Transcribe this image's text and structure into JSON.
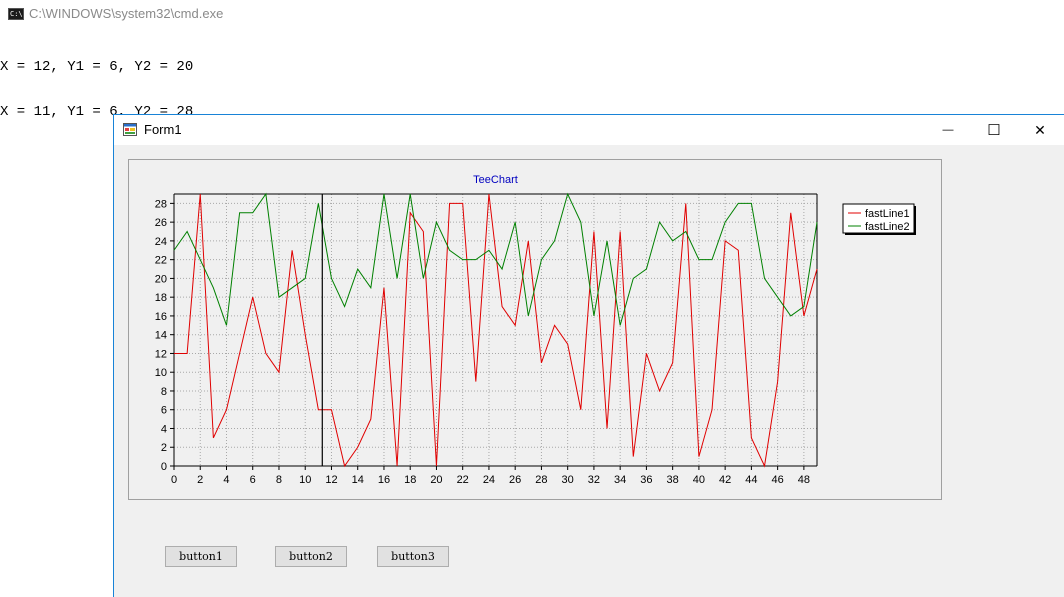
{
  "console": {
    "title": "C:\\WINDOWS\\system32\\cmd.exe",
    "icon": "cmd-icon",
    "icon_text": "C:\\",
    "lines": [
      "X = 12, Y1 = 6, Y2 = 20",
      "X = 11, Y1 = 6, Y2 = 28"
    ]
  },
  "form": {
    "title": "Form1",
    "minimize_glyph": "—",
    "maximize_glyph": "☐",
    "close_glyph": "✕",
    "buttons": [
      "button1",
      "button2",
      "button3"
    ]
  },
  "chart_data": {
    "type": "line",
    "title": "TeeChart",
    "xlim": [
      0,
      49
    ],
    "ylim": [
      0,
      29
    ],
    "x_ticks": [
      0,
      2,
      4,
      6,
      8,
      10,
      12,
      14,
      16,
      18,
      20,
      22,
      24,
      26,
      28,
      30,
      32,
      34,
      36,
      38,
      40,
      42,
      44,
      46,
      48
    ],
    "y_ticks": [
      0,
      2,
      4,
      6,
      8,
      10,
      12,
      14,
      16,
      18,
      20,
      22,
      24,
      26,
      28
    ],
    "grid": true,
    "legend_position": "right",
    "cursor_x": 11.3,
    "x": [
      0,
      1,
      2,
      3,
      4,
      5,
      6,
      7,
      8,
      9,
      10,
      11,
      12,
      13,
      14,
      15,
      16,
      17,
      18,
      19,
      20,
      21,
      22,
      23,
      24,
      25,
      26,
      27,
      28,
      29,
      30,
      31,
      32,
      33,
      34,
      35,
      36,
      37,
      38,
      39,
      40,
      41,
      42,
      43,
      44,
      45,
      46,
      47,
      48,
      49
    ],
    "series": [
      {
        "name": "fastLine1",
        "color": "#e00000",
        "values": [
          12,
          12,
          29,
          3,
          6,
          12,
          18,
          12,
          10,
          23,
          14,
          6,
          6,
          0,
          2,
          5,
          19,
          0,
          27,
          25,
          0,
          28,
          28,
          9,
          29,
          17,
          15,
          24,
          11,
          15,
          13,
          6,
          25,
          4,
          25,
          1,
          12,
          8,
          11,
          28,
          1,
          6,
          24,
          23,
          3,
          0,
          9,
          27,
          16,
          21
        ]
      },
      {
        "name": "fastLine2",
        "color": "#008000",
        "values": [
          23,
          25,
          22,
          19,
          15,
          27,
          27,
          29,
          18,
          19,
          20,
          28,
          20,
          17,
          21,
          19,
          29,
          20,
          29,
          20,
          26,
          23,
          22,
          22,
          23,
          21,
          26,
          16,
          22,
          24,
          29,
          26,
          16,
          24,
          15,
          20,
          21,
          26,
          24,
          25,
          22,
          22,
          26,
          28,
          28,
          20,
          18,
          16,
          17,
          26
        ]
      }
    ]
  }
}
